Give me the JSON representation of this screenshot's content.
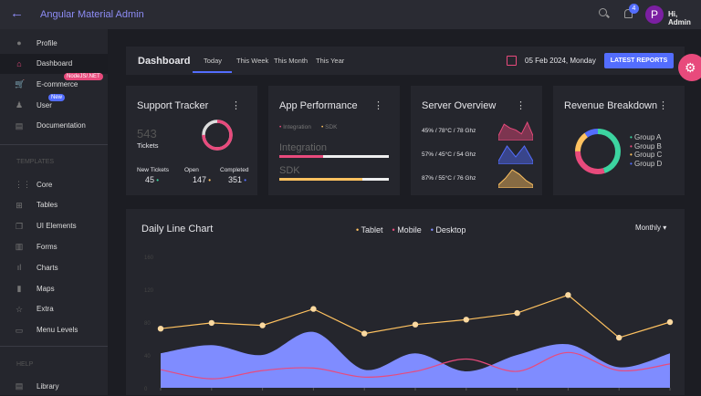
{
  "app": {
    "title": "Angular Material Admin",
    "notifications": "4",
    "avatar_letter": "P",
    "greeting": "Hi, Admin"
  },
  "sidebar": {
    "items": [
      {
        "label": "Profile",
        "icon": "account-circle-icon"
      },
      {
        "label": "Dashboard",
        "icon": "home-icon",
        "active": true
      },
      {
        "label": "E-commerce",
        "icon": "cart-icon",
        "tag": "NodeJS/.NET"
      },
      {
        "label": "User",
        "icon": "person-icon",
        "tag": "New"
      },
      {
        "label": "Documentation",
        "icon": "document-icon"
      }
    ],
    "templates_heading": "TEMPLATES",
    "templates": [
      {
        "label": "Core",
        "icon": "grid-icon"
      },
      {
        "label": "Tables",
        "icon": "table-icon"
      },
      {
        "label": "UI Elements",
        "icon": "layers-icon"
      },
      {
        "label": "Forms",
        "icon": "form-icon"
      },
      {
        "label": "Charts",
        "icon": "bar-chart-icon"
      },
      {
        "label": "Maps",
        "icon": "map-icon"
      },
      {
        "label": "Extra",
        "icon": "star-icon"
      },
      {
        "label": "Menu Levels",
        "icon": "folder-icon"
      }
    ],
    "help_heading": "HELP",
    "help": [
      {
        "label": "Library",
        "icon": "library-icon"
      }
    ]
  },
  "header": {
    "title": "Dashboard",
    "tabs": [
      "Today",
      "This Week",
      "This Month",
      "This Year"
    ],
    "active_tab": "Today",
    "date": "05 Feb 2024, Monday",
    "button": "LATEST REPORTS"
  },
  "support": {
    "title": "Support Tracker",
    "count": "543",
    "count_label": "Tickets",
    "stats": [
      {
        "label": "New Tickets",
        "value": "45",
        "color": "#3cd4a0"
      },
      {
        "label": "Open",
        "value": "147",
        "color": "#ffc260"
      },
      {
        "label": "Completed",
        "value": "351",
        "color": "#536dfe"
      }
    ],
    "donut_fraction": 0.75
  },
  "app_perf": {
    "title": "App Performance",
    "legend": [
      "Integration",
      "SDK"
    ],
    "bars": [
      {
        "label": "Integration",
        "value": 0.4,
        "color": "#e84a7c"
      },
      {
        "label": "SDK",
        "value": 0.76,
        "color": "#ffc260"
      }
    ]
  },
  "server": {
    "title": "Server Overview",
    "rows": [
      {
        "text": "45% / 78°C / 78 Ghz",
        "color": "#e84a7c",
        "values": [
          2,
          8,
          6,
          5,
          3,
          9,
          2
        ]
      },
      {
        "text": "57% / 45°C / 54 Ghz",
        "color": "#536dfe",
        "values": [
          1,
          8,
          3,
          8,
          1
        ]
      },
      {
        "text": "87% / 55°C / 76 Ghz",
        "color": "#ffc260",
        "values": [
          1,
          4,
          8,
          6,
          3,
          1
        ]
      }
    ]
  },
  "revenue": {
    "title": "Revenue Breakdown",
    "groups": [
      {
        "name": "Group A",
        "value": 45,
        "color": "#3cd4a0"
      },
      {
        "name": "Group B",
        "value": 30,
        "color": "#e84a7c"
      },
      {
        "name": "Group C",
        "value": 15,
        "color": "#ffc260"
      },
      {
        "name": "Group D",
        "value": 10,
        "color": "#536dfe"
      }
    ]
  },
  "chart_data": {
    "type": "line",
    "title": "Daily Line Chart",
    "period": "Monthly",
    "ylim": [
      0,
      160
    ],
    "yticks": [
      "160",
      "120",
      "80",
      "40",
      "0"
    ],
    "series": [
      {
        "name": "Tablet",
        "type": "line",
        "color": "#ffc260",
        "values": [
          72,
          79,
          76,
          96,
          66,
          77,
          83,
          91,
          113,
          61,
          80
        ]
      },
      {
        "name": "Mobile",
        "type": "line",
        "color": "#e84a7c",
        "values": [
          22,
          11,
          21,
          24,
          13,
          20,
          35,
          20,
          43,
          21,
          29
        ]
      },
      {
        "name": "Desktop",
        "type": "area",
        "color": "#7f8cff",
        "values": [
          42,
          52,
          40,
          68,
          22,
          42,
          20,
          40,
          53,
          25,
          42
        ]
      }
    ]
  }
}
